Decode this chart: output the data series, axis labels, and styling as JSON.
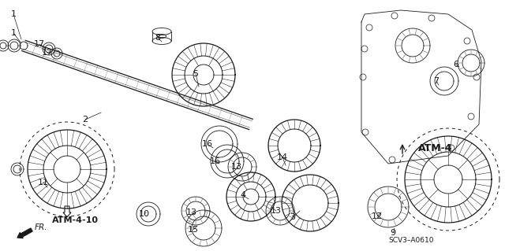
{
  "bg_color": "#ffffff",
  "line_color": "#1a1a1a",
  "font_size_label": 8,
  "font_size_atm": 9,
  "simple_labels": [
    [
      "1",
      17,
      18
    ],
    [
      "1",
      17,
      42
    ],
    [
      "17",
      50,
      56
    ],
    [
      "17",
      60,
      67
    ],
    [
      "2",
      108,
      152
    ],
    [
      "8",
      200,
      48
    ],
    [
      "5",
      248,
      94
    ],
    [
      "16",
      263,
      183
    ],
    [
      "16",
      273,
      205
    ],
    [
      "13",
      300,
      212
    ],
    [
      "14",
      358,
      200
    ],
    [
      "4",
      308,
      248
    ],
    [
      "13",
      350,
      268
    ],
    [
      "13",
      243,
      270
    ],
    [
      "15",
      245,
      292
    ],
    [
      "10",
      183,
      272
    ],
    [
      "11",
      55,
      232
    ],
    [
      "3",
      371,
      276
    ],
    [
      "12",
      478,
      275
    ],
    [
      "9",
      498,
      296
    ],
    [
      "6",
      578,
      82
    ],
    [
      "7",
      553,
      103
    ]
  ]
}
